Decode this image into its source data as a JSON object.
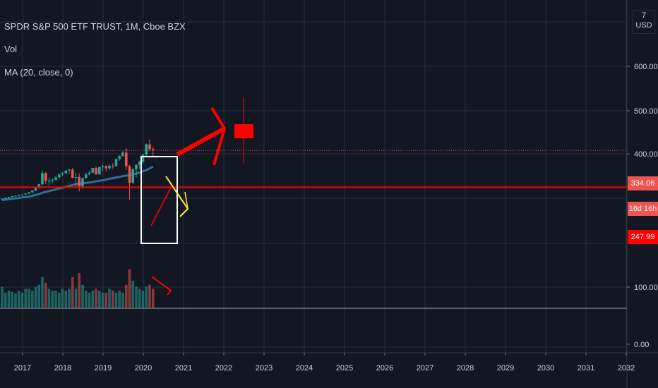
{
  "legend": {
    "symbol": "SPDR S&P 500 ETF TRUST, 1M, Cboe BZX",
    "vol": "Vol",
    "ma": "MA (20, close, 0)"
  },
  "currency_button": {
    "top": "7",
    "bottom": "USD"
  },
  "price_labels": {
    "last": "334.06",
    "countdown": "16d 16h",
    "level": "247.99"
  },
  "colors": {
    "background": "#131722",
    "grid": "#2a2e39",
    "up": "#26a69a",
    "down": "#ef5350",
    "ma": "#2e6e99",
    "drawing": "#ff0000",
    "arrow": "#ffeb3b",
    "box": "#ffffff",
    "label_bg": "#ef5350"
  },
  "chart_data": {
    "type": "candlestick",
    "price_axis": {
      "ticks": [
        600,
        500,
        400,
        100,
        0
      ],
      "tick_labels": [
        "600.00",
        "500.00",
        "400.00",
        "100.00",
        "0.00"
      ]
    },
    "time_axis": {
      "ticks": [
        "2017",
        "2018",
        "2019",
        "2020",
        "2021",
        "2022",
        "2023",
        "2024",
        "2025",
        "2026",
        "2027",
        "2028",
        "2029",
        "2030",
        "2031",
        "2032"
      ]
    },
    "horizontal_line": 247.99,
    "last_price": 334.06,
    "candles": [
      [
        220,
        222,
        219,
        221
      ],
      [
        221,
        224,
        220,
        223
      ],
      [
        223,
        226,
        222,
        225
      ],
      [
        225,
        228,
        224,
        227
      ],
      [
        227,
        229,
        226,
        228
      ],
      [
        228,
        231,
        227,
        230
      ],
      [
        230,
        232,
        229,
        231
      ],
      [
        231,
        234,
        230,
        233
      ],
      [
        233,
        237,
        232,
        236
      ],
      [
        236,
        241,
        235,
        240
      ],
      [
        240,
        247,
        239,
        246
      ],
      [
        246,
        256,
        245,
        255
      ],
      [
        255,
        287,
        253,
        281
      ],
      [
        281,
        283,
        255,
        263
      ],
      [
        263,
        270,
        252,
        263
      ],
      [
        263,
        269,
        257,
        265
      ],
      [
        265,
        274,
        264,
        271
      ],
      [
        271,
        280,
        269,
        278
      ],
      [
        278,
        283,
        274,
        281
      ],
      [
        281,
        288,
        279,
        287
      ],
      [
        287,
        291,
        279,
        289
      ],
      [
        289,
        293,
        269,
        270
      ],
      [
        270,
        282,
        250,
        272
      ],
      [
        272,
        280,
        238,
        250
      ],
      [
        250,
        271,
        244,
        269
      ],
      [
        269,
        282,
        268,
        278
      ],
      [
        278,
        286,
        276,
        282
      ],
      [
        282,
        293,
        282,
        293
      ],
      [
        293,
        297,
        277,
        278
      ],
      [
        278,
        296,
        277,
        295
      ],
      [
        295,
        301,
        286,
        297
      ],
      [
        297,
        300,
        285,
        292
      ],
      [
        292,
        302,
        289,
        298
      ],
      [
        298,
        304,
        291,
        297
      ],
      [
        297,
        315,
        297,
        314
      ],
      [
        314,
        323,
        310,
        321
      ],
      [
        321,
        332,
        320,
        329
      ],
      [
        329,
        339,
        289,
        297
      ],
      [
        297,
        300,
        218,
        258
      ],
      [
        258,
        292,
        256,
        290
      ],
      [
        290,
        303,
        271,
        300
      ],
      [
        300,
        310,
        290,
        307
      ],
      [
        307,
        327,
        303,
        324
      ],
      [
        324,
        350,
        319,
        348
      ],
      [
        348,
        359,
        334,
        337
      ],
      [
        337,
        342,
        321,
        334
      ]
    ],
    "volume": [
      55,
      40,
      45,
      42,
      38,
      45,
      40,
      50,
      50,
      45,
      55,
      60,
      80,
      65,
      50,
      45,
      45,
      40,
      50,
      45,
      50,
      80,
      50,
      90,
      60,
      45,
      40,
      45,
      50,
      45,
      40,
      40,
      50,
      45,
      40,
      45,
      40,
      60,
      100,
      70,
      55,
      50,
      45,
      55,
      60,
      50
    ],
    "ma20": [
      218,
      219,
      220,
      221,
      222,
      223,
      224,
      225,
      226,
      228,
      230,
      232,
      235,
      237,
      239,
      241,
      243,
      245,
      247,
      249,
      251,
      253,
      255,
      256,
      257,
      258,
      259,
      260,
      262,
      263,
      264,
      266,
      268,
      269,
      271,
      272,
      274,
      275,
      276,
      278,
      280,
      282,
      285,
      288,
      292,
      296
    ]
  }
}
